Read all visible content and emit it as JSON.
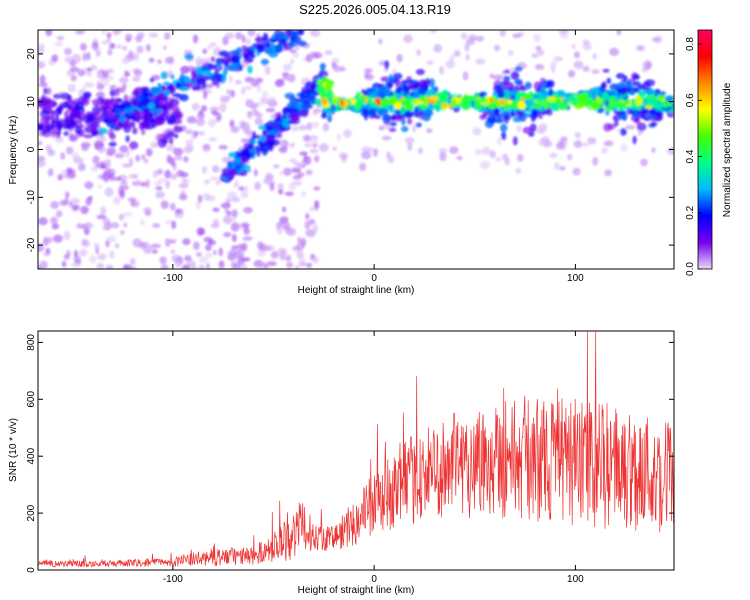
{
  "page": {
    "title": "S225.2026.005.04.13.R19"
  },
  "chart_data": [
    {
      "type": "heatmap",
      "name": "spectrogram",
      "xlabel": "Height of straight line (km)",
      "ylabel": "Frequency (Hz)",
      "xlim": [
        -167,
        149
      ],
      "ylim": [
        -25,
        25
      ],
      "xticks": [
        -100,
        0,
        100
      ],
      "yticks": [
        -20,
        -10,
        0,
        10,
        20
      ],
      "colorbar": {
        "label": "Normalized spectral amplitude",
        "range": [
          0.0,
          0.85
        ],
        "ticks": [
          0.0,
          0.2,
          0.4,
          0.6,
          0.8
        ],
        "colormap": [
          "#e8d8f8",
          "#7700ee",
          "#0000ff",
          "#00bbff",
          "#00ff88",
          "#44ff00",
          "#ffff00",
          "#ff8800",
          "#ff0000",
          "#ff0066"
        ]
      },
      "features": [
        {
          "name": "main-band",
          "x_range": [
            -25,
            149
          ],
          "freq_hz": 10,
          "peak_amplitude": 0.85
        },
        {
          "name": "upper-diagonal-streak",
          "from": [
            -135,
            6
          ],
          "to": [
            -35,
            25
          ]
        },
        {
          "name": "lower-diagonal-streak",
          "from": [
            -75,
            -6
          ],
          "to": [
            -25,
            14
          ]
        },
        {
          "name": "left-band",
          "x_range": [
            -167,
            -100
          ],
          "freq_hz": 7
        }
      ]
    },
    {
      "type": "line",
      "name": "snr",
      "xlabel": "Height of straight line (km)",
      "ylabel": "SNR (10 * v/v)",
      "xlim": [
        -167,
        149
      ],
      "ylim": [
        0,
        840
      ],
      "xticks": [
        -100,
        0,
        100
      ],
      "yticks": [
        0,
        200,
        400,
        600,
        800
      ],
      "color": "#ee3333",
      "envelope": {
        "x": [
          -167,
          -130,
          -100,
          -80,
          -60,
          -50,
          -40,
          -35,
          -30,
          -20,
          -10,
          0,
          10,
          20,
          30,
          40,
          50,
          60,
          80,
          100,
          120,
          149
        ],
        "mean": [
          22,
          22,
          28,
          45,
          50,
          80,
          130,
          150,
          120,
          110,
          170,
          230,
          280,
          320,
          350,
          370,
          380,
          400,
          390,
          380,
          360,
          330
        ],
        "spread": [
          15,
          15,
          20,
          40,
          40,
          70,
          120,
          120,
          60,
          60,
          110,
          140,
          170,
          200,
          210,
          230,
          250,
          270,
          280,
          280,
          280,
          260
        ]
      }
    }
  ]
}
